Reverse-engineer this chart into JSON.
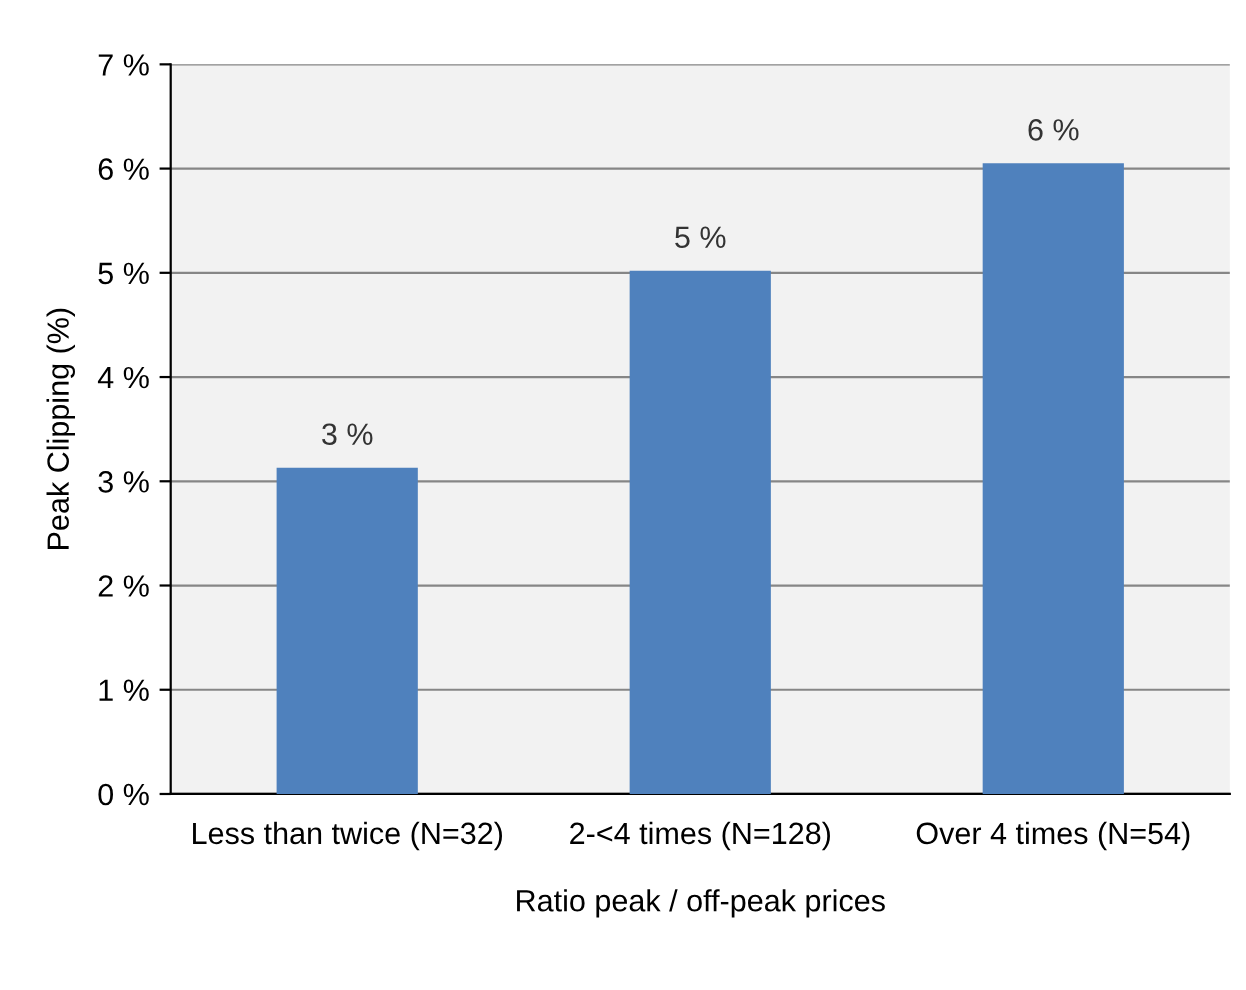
{
  "chart_data": {
    "type": "bar",
    "xlabel": "Ratio peak / off-peak prices",
    "ylabel": "Peak Clipping (%)",
    "categories": [
      "Less than twice (N=32)",
      "2-<4 times (N=128)",
      "Over 4 times (N=54)"
    ],
    "values": [
      3.13,
      5.02,
      6.05
    ],
    "value_labels": [
      "3 %",
      "5 %",
      "6 %"
    ],
    "color": "#4f81bd",
    "ylim": [
      0,
      7
    ],
    "yticks": [
      {
        "value": 0,
        "label": "0 %"
      },
      {
        "value": 1,
        "label": "1 %"
      },
      {
        "value": 2,
        "label": "2 %"
      },
      {
        "value": 3,
        "label": "3 %"
      },
      {
        "value": 4,
        "label": "4 %"
      },
      {
        "value": 5,
        "label": "5 %"
      },
      {
        "value": 6,
        "label": "6 %"
      },
      {
        "value": 7,
        "label": "7 %"
      }
    ],
    "grid": "y"
  }
}
